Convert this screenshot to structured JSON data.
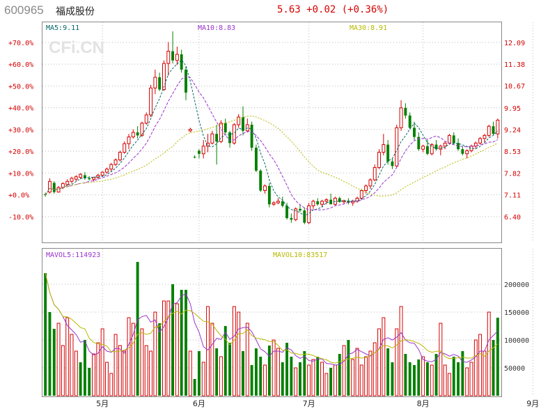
{
  "header": {
    "stock_code": "600965",
    "stock_name": "福成股份",
    "price": "5.63",
    "change": "+0.02",
    "change_pct": "(+0.36%)"
  },
  "watermark": "CFi.CN",
  "colors": {
    "up": "#d40000",
    "down": "#008000",
    "ma5": "#006666",
    "ma10": "#9933cc",
    "ma30": "#b8b800",
    "pct_axis": "#d40000",
    "price_axis": "#d40000"
  },
  "chart_data": [
    {
      "type": "candlestick",
      "legend": [
        {
          "label": "MA5:9.11",
          "color": "#006666"
        },
        {
          "label": "MA10:8.83",
          "color": "#9933cc"
        },
        {
          "label": "MA30:8.91",
          "color": "#b8b800"
        }
      ],
      "left_ticks": [
        "+70.0%",
        "+60.0%",
        "+50.0%",
        "+40.0%",
        "+30.0%",
        "+20.0%",
        "+10.0%",
        "+0.0%",
        "-10.0%"
      ],
      "left_tick_values": [
        70,
        60,
        50,
        40,
        30,
        20,
        10,
        0,
        -10
      ],
      "right_ticks": [
        "12.09",
        "11.38",
        "10.67",
        "9.95",
        "9.24",
        "8.53",
        "7.82",
        "7.11",
        "6.40"
      ],
      "right_tick_values": [
        12.09,
        11.38,
        10.67,
        9.95,
        9.24,
        8.53,
        7.82,
        7.11,
        6.4
      ],
      "ylim": [
        5.6,
        12.7
      ],
      "x_labels": [
        "5月",
        "6月",
        "7月",
        "8月",
        "9月"
      ],
      "x_label_index": [
        13,
        35,
        60,
        86,
        111
      ],
      "ohlc": [
        [
          7.13,
          7.18,
          7.05,
          7.1
        ],
        [
          7.2,
          7.65,
          7.15,
          7.55
        ],
        [
          7.5,
          7.55,
          7.15,
          7.2
        ],
        [
          7.2,
          7.4,
          7.18,
          7.35
        ],
        [
          7.35,
          7.52,
          7.3,
          7.48
        ],
        [
          7.45,
          7.62,
          7.4,
          7.55
        ],
        [
          7.55,
          7.7,
          7.48,
          7.65
        ],
        [
          7.62,
          7.75,
          7.55,
          7.7
        ],
        [
          7.68,
          7.82,
          7.62,
          7.78
        ],
        [
          7.75,
          7.85,
          7.6,
          7.65
        ],
        [
          7.65,
          7.72,
          7.58,
          7.62
        ],
        [
          7.62,
          7.7,
          7.55,
          7.68
        ],
        [
          7.68,
          7.8,
          7.62,
          7.75
        ],
        [
          7.75,
          7.88,
          7.7,
          7.85
        ],
        [
          7.85,
          8.0,
          7.8,
          7.95
        ],
        [
          7.95,
          8.15,
          7.88,
          8.1
        ],
        [
          8.1,
          8.3,
          8.05,
          8.25
        ],
        [
          8.25,
          8.55,
          8.2,
          8.5
        ],
        [
          8.5,
          8.85,
          8.45,
          8.78
        ],
        [
          8.78,
          9.1,
          8.6,
          9.0
        ],
        [
          9.0,
          9.25,
          8.95,
          9.15
        ],
        [
          9.15,
          9.35,
          8.95,
          9.05
        ],
        [
          9.05,
          9.5,
          9.0,
          9.45
        ],
        [
          9.45,
          9.8,
          9.4,
          9.72
        ],
        [
          9.72,
          10.7,
          9.65,
          10.6
        ],
        [
          10.6,
          11.2,
          10.4,
          10.95
        ],
        [
          10.95,
          11.1,
          10.5,
          10.55
        ],
        [
          10.55,
          11.5,
          10.5,
          11.4
        ],
        [
          11.4,
          12.1,
          11.0,
          11.8
        ],
        [
          11.8,
          12.45,
          11.4,
          11.5
        ],
        [
          11.5,
          11.95,
          11.35,
          11.7
        ],
        [
          11.7,
          11.85,
          11.1,
          11.2
        ],
        [
          11.2,
          11.3,
          10.2,
          10.45
        ],
        [
          9.2,
          9.3,
          9.15,
          9.25
        ],
        [
          8.35,
          8.4,
          8.3,
          8.33
        ],
        [
          8.55,
          8.6,
          8.3,
          8.45
        ],
        [
          8.45,
          8.9,
          8.3,
          8.7
        ],
        [
          8.7,
          9.1,
          8.5,
          8.8
        ],
        [
          8.8,
          9.2,
          8.75,
          9.1
        ],
        [
          9.1,
          9.4,
          8.1,
          8.85
        ],
        [
          8.85,
          9.55,
          8.8,
          9.45
        ],
        [
          9.45,
          9.6,
          9.1,
          9.15
        ],
        [
          9.15,
          9.2,
          8.65,
          8.8
        ],
        [
          8.8,
          9.45,
          8.75,
          9.4
        ],
        [
          9.4,
          9.75,
          9.3,
          9.65
        ],
        [
          9.65,
          10.0,
          9.05,
          9.2
        ],
        [
          9.2,
          9.6,
          9.15,
          9.4
        ],
        [
          9.4,
          9.5,
          8.55,
          8.65
        ],
        [
          8.65,
          8.75,
          7.85,
          7.9
        ],
        [
          7.9,
          7.95,
          7.2,
          7.25
        ],
        [
          7.25,
          7.45,
          7.15,
          7.4
        ],
        [
          7.4,
          7.5,
          6.7,
          6.8
        ],
        [
          6.8,
          6.9,
          6.75,
          6.85
        ],
        [
          6.85,
          7.0,
          6.8,
          6.9
        ],
        [
          6.9,
          7.05,
          6.7,
          6.75
        ],
        [
          6.75,
          6.85,
          6.3,
          6.35
        ],
        [
          6.35,
          6.5,
          6.2,
          6.3
        ],
        [
          6.3,
          6.7,
          6.25,
          6.65
        ],
        [
          6.65,
          6.8,
          6.55,
          6.6
        ],
        [
          6.6,
          6.7,
          6.15,
          6.2
        ],
        [
          6.2,
          6.85,
          6.15,
          6.75
        ],
        [
          6.75,
          6.95,
          6.65,
          6.9
        ],
        [
          6.9,
          7.0,
          6.75,
          6.8
        ],
        [
          6.8,
          6.95,
          6.7,
          6.9
        ],
        [
          6.9,
          7.0,
          6.8,
          6.95
        ],
        [
          6.95,
          7.15,
          6.85,
          6.8
        ],
        [
          6.8,
          7.05,
          6.75,
          7.0
        ],
        [
          7.0,
          7.05,
          6.85,
          6.88
        ],
        [
          6.88,
          6.95,
          6.82,
          6.92
        ],
        [
          6.92,
          7.0,
          6.8,
          6.85
        ],
        [
          6.85,
          6.95,
          6.75,
          6.9
        ],
        [
          6.9,
          7.05,
          6.85,
          7.0
        ],
        [
          7.0,
          7.3,
          6.95,
          7.25
        ],
        [
          7.25,
          7.45,
          7.15,
          7.4
        ],
        [
          7.4,
          7.65,
          7.3,
          7.6
        ],
        [
          7.6,
          8.1,
          7.55,
          8.0
        ],
        [
          8.0,
          8.6,
          7.95,
          8.5
        ],
        [
          8.5,
          9.1,
          8.4,
          8.75
        ],
        [
          8.75,
          8.9,
          8.1,
          8.2
        ],
        [
          8.2,
          8.3,
          7.95,
          8.05
        ],
        [
          8.05,
          9.4,
          8.0,
          9.3
        ],
        [
          9.3,
          10.2,
          9.2,
          9.95
        ],
        [
          9.95,
          10.1,
          9.6,
          9.7
        ],
        [
          9.7,
          9.8,
          9.25,
          9.3
        ],
        [
          9.3,
          9.5,
          8.9,
          9.0
        ],
        [
          9.0,
          9.15,
          8.55,
          8.6
        ],
        [
          8.6,
          8.75,
          8.5,
          8.7
        ],
        [
          8.7,
          8.9,
          8.4,
          8.45
        ],
        [
          8.45,
          8.8,
          8.4,
          8.75
        ],
        [
          8.75,
          8.9,
          8.55,
          8.6
        ],
        [
          8.6,
          8.75,
          8.4,
          8.7
        ],
        [
          8.7,
          8.85,
          8.6,
          8.8
        ],
        [
          8.8,
          9.1,
          8.75,
          9.05
        ],
        [
          9.05,
          9.15,
          8.75,
          8.8
        ],
        [
          8.8,
          8.95,
          8.55,
          8.6
        ],
        [
          8.6,
          8.7,
          8.4,
          8.45
        ],
        [
          8.45,
          8.6,
          8.3,
          8.55
        ],
        [
          8.55,
          8.75,
          8.5,
          8.7
        ],
        [
          8.7,
          8.85,
          8.6,
          8.8
        ],
        [
          8.8,
          9.0,
          8.75,
          8.95
        ],
        [
          8.95,
          9.1,
          8.8,
          9.05
        ],
        [
          9.05,
          9.4,
          9.0,
          9.35
        ],
        [
          9.35,
          9.5,
          9.05,
          9.1
        ],
        [
          9.1,
          9.6,
          8.95,
          9.55
        ]
      ]
    },
    {
      "type": "bar",
      "legend": [
        {
          "label": "MAVOL5:114923",
          "color": "#9933cc"
        },
        {
          "label": "MAVOL10:83517",
          "color": "#b8b800"
        }
      ],
      "right_ticks": [
        "200000",
        "150000",
        "100000",
        "50000"
      ],
      "right_tick_values": [
        200000,
        150000,
        100000,
        50000
      ],
      "ylim": [
        0,
        260000
      ],
      "volume": [
        220000,
        150000,
        120000,
        130000,
        90000,
        140000,
        110000,
        80000,
        60000,
        100000,
        50000,
        75000,
        95000,
        120000,
        60000,
        40000,
        110000,
        90000,
        80000,
        140000,
        130000,
        240000,
        120000,
        90000,
        80000,
        150000,
        130000,
        170000,
        170000,
        200000,
        165000,
        190000,
        190000,
        80000,
        30000,
        80000,
        60000,
        160000,
        130000,
        85000,
        70000,
        125000,
        95000,
        160000,
        150000,
        80000,
        130000,
        55000,
        85000,
        70000,
        55000,
        90000,
        100000,
        85000,
        60000,
        95000,
        70000,
        50000,
        60000,
        80000,
        55000,
        65000,
        70000,
        60000,
        40000,
        50000,
        55000,
        75000,
        90000,
        100000,
        65000,
        85000,
        55000,
        70000,
        80000,
        95000,
        120000,
        140000,
        85000,
        60000,
        120000,
        160000,
        75000,
        60000,
        55000,
        65000,
        70000,
        60000,
        55000,
        75000,
        130000,
        55000,
        40000,
        70000,
        60000,
        80000,
        50000,
        60000,
        100000,
        110000,
        80000,
        150000,
        100000,
        140000
      ],
      "up_flags": [
        0,
        0,
        0,
        1,
        1,
        1,
        1,
        1,
        0,
        0,
        0,
        1,
        1,
        1,
        1,
        1,
        1,
        1,
        1,
        1,
        1,
        0,
        1,
        1,
        1,
        1,
        0,
        1,
        1,
        0,
        1,
        0,
        0,
        1,
        0,
        0,
        1,
        1,
        1,
        0,
        1,
        0,
        0,
        1,
        1,
        0,
        1,
        0,
        0,
        0,
        1,
        0,
        1,
        1,
        0,
        0,
        0,
        1,
        0,
        0,
        1,
        1,
        0,
        1,
        1,
        0,
        1,
        0,
        1,
        0,
        1,
        1,
        1,
        1,
        1,
        1,
        1,
        1,
        0,
        0,
        1,
        1,
        0,
        0,
        0,
        0,
        1,
        0,
        1,
        0,
        1,
        1,
        1,
        0,
        0,
        0,
        1,
        1,
        1,
        1,
        1,
        1,
        0,
        0
      ]
    }
  ]
}
